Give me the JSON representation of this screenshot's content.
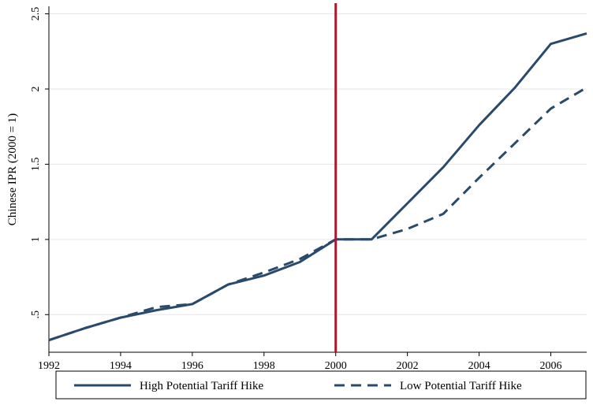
{
  "chart_data": {
    "type": "line",
    "title": "",
    "xlabel": "",
    "ylabel": "Chinese IPR (2000 = 1)",
    "xlim": [
      1992,
      2007
    ],
    "ylim": [
      0.25,
      2.55
    ],
    "x_ticks": [
      1992,
      1994,
      1996,
      1998,
      2000,
      2002,
      2004,
      2006
    ],
    "x_tick_labels": [
      "1992",
      "1994",
      "1996",
      "1998",
      "2000",
      "2002",
      "2004",
      "2006"
    ],
    "y_ticks": [
      0.5,
      1,
      1.5,
      2,
      2.5
    ],
    "y_tick_labels": [
      ".5",
      "1",
      "1.5",
      "2",
      "2.5"
    ],
    "grid": "horizontal",
    "legend_position": "bottom",
    "reference_line": {
      "x": 2000,
      "color": "#a8192e"
    },
    "x": [
      1992,
      1993,
      1994,
      1995,
      1996,
      1997,
      1998,
      1999,
      2000,
      2001,
      2002,
      2003,
      2004,
      2005,
      2006,
      2007
    ],
    "series": [
      {
        "name": "High Potential Tariff Hike",
        "style": "solid",
        "color": "#2a4a6b",
        "values": [
          0.33,
          0.41,
          0.48,
          0.53,
          0.57,
          0.7,
          0.76,
          0.85,
          1.0,
          1.0,
          1.24,
          1.48,
          1.76,
          2.01,
          2.3,
          2.37
        ]
      },
      {
        "name": "Low Potential Tariff Hike",
        "style": "dashed",
        "color": "#2a4a6b",
        "values": [
          0.33,
          0.41,
          0.48,
          0.55,
          0.57,
          0.7,
          0.78,
          0.87,
          1.0,
          1.0,
          1.07,
          1.17,
          1.41,
          1.64,
          1.87,
          2.01
        ]
      }
    ]
  }
}
